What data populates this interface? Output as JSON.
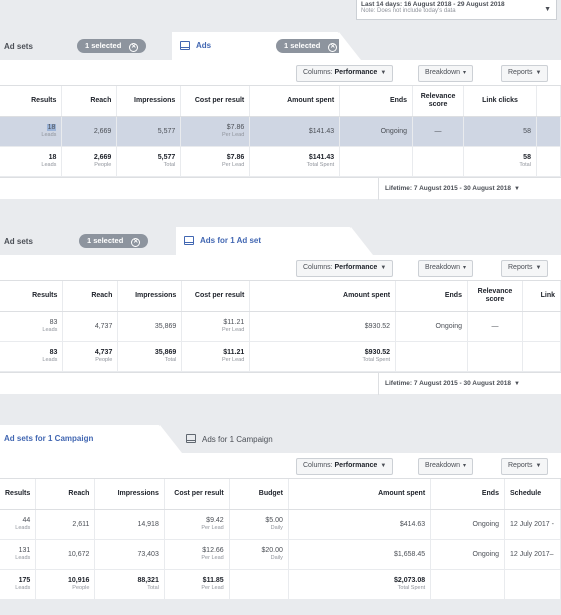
{
  "date_range": {
    "label": "Last 14 days: 16 August 2018 - 29 August 2018",
    "note": "Note: Does not include today's data"
  },
  "toolbar": {
    "columns_prefix": "Columns: ",
    "columns_value": "Performance",
    "breakdown": "Breakdown",
    "reports": "Reports"
  },
  "section1": {
    "tab_adsets": "Ad sets",
    "pill_adsets": "1 selected",
    "tab_ads": "Ads",
    "pill_ads": "1 selected",
    "headers": [
      "Results",
      "Reach",
      "Impressions",
      "Cost per result",
      "Amount spent",
      "Ends",
      "Relevance score",
      "Link clicks"
    ],
    "rows": [
      {
        "results": "18",
        "results_sub": "Leads",
        "reach": "2,669",
        "reach_sub": "",
        "impressions": "5,577",
        "impressions_sub": "",
        "cpr": "$7.86",
        "cpr_sub": "Per Lead",
        "spent": "$141.43",
        "spent_sub": "",
        "ends": "Ongoing",
        "relevance": "—",
        "clicks": "58",
        "clicks_sub": ""
      },
      {
        "results": "18",
        "results_sub": "Leads",
        "reach": "2,669",
        "reach_sub": "People",
        "impressions": "5,577",
        "impressions_sub": "Total",
        "cpr": "$7.86",
        "cpr_sub": "Per Lead",
        "spent": "$141.43",
        "spent_sub": "Total Spent",
        "ends": "",
        "relevance": "",
        "clicks": "58",
        "clicks_sub": "Total"
      }
    ],
    "lifetime": "Lifetime: 7 August 2015 - 30 August 2018"
  },
  "section2": {
    "tab_adsets": "Ad sets",
    "pill_adsets": "1 selected",
    "tab_ads": "Ads for 1 Ad set",
    "headers": [
      "Results",
      "Reach",
      "Impressions",
      "Cost per result",
      "Amount spent",
      "Ends",
      "Relevance score",
      "Link"
    ],
    "rows": [
      {
        "results": "83",
        "results_sub": "Leads",
        "reach": "4,737",
        "reach_sub": "",
        "impressions": "35,869",
        "impressions_sub": "",
        "cpr": "$11.21",
        "cpr_sub": "Per Lead",
        "spent": "$930.52",
        "spent_sub": "",
        "ends": "Ongoing",
        "relevance": "—"
      },
      {
        "results": "83",
        "results_sub": "Leads",
        "reach": "4,737",
        "reach_sub": "People",
        "impressions": "35,869",
        "impressions_sub": "Total",
        "cpr": "$11.21",
        "cpr_sub": "Per Lead",
        "spent": "$930.52",
        "spent_sub": "Total Spent",
        "ends": "",
        "relevance": ""
      }
    ],
    "lifetime": "Lifetime: 7 August 2015 - 30 August 2018"
  },
  "section3": {
    "tab_adsets": "Ad sets for 1 Campaign",
    "tab_ads": "Ads for 1 Campaign",
    "headers": [
      "Results",
      "Reach",
      "Impressions",
      "Cost per result",
      "Budget",
      "Amount spent",
      "Ends",
      "Schedule"
    ],
    "rows": [
      {
        "results": "44",
        "results_sub": "Leads",
        "reach": "2,611",
        "reach_sub": "",
        "impressions": "14,918",
        "impressions_sub": "",
        "cpr": "$9.42",
        "cpr_sub": "Per Lead",
        "budget": "$5.00",
        "budget_sub": "Daily",
        "spent": "$414.63",
        "spent_sub": "",
        "ends": "Ongoing",
        "schedule": "12 July 2017 -"
      },
      {
        "results": "131",
        "results_sub": "Leads",
        "reach": "10,672",
        "reach_sub": "",
        "impressions": "73,403",
        "impressions_sub": "",
        "cpr": "$12.66",
        "cpr_sub": "Per Lead",
        "budget": "$20.00",
        "budget_sub": "Daily",
        "spent": "$1,658.45",
        "spent_sub": "",
        "ends": "Ongoing",
        "schedule": "12 July 2017–"
      },
      {
        "results": "175",
        "results_sub": "Leads",
        "reach": "10,916",
        "reach_sub": "People",
        "impressions": "88,321",
        "impressions_sub": "Total",
        "cpr": "$11.85",
        "cpr_sub": "Per Lead",
        "budget": "",
        "budget_sub": "",
        "spent": "$2,073.08",
        "spent_sub": "Total Spent",
        "ends": "",
        "schedule": ""
      }
    ]
  }
}
